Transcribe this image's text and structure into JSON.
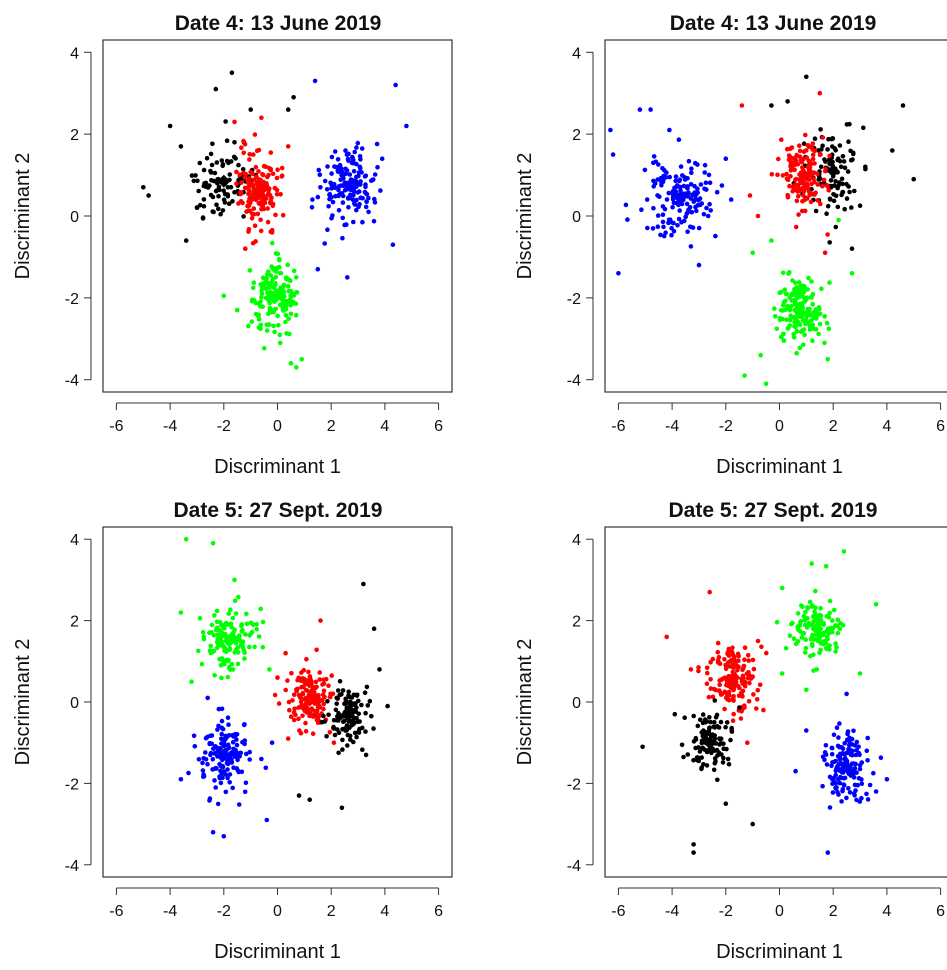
{
  "chart_data": [
    {
      "type": "scatter",
      "title": "Date 4: 13 June 2019",
      "xlabel": "Discriminant 1",
      "ylabel": "Discriminant 2",
      "xlim": [
        -6.5,
        6.5
      ],
      "ylim": [
        -4.3,
        4.3
      ],
      "xticks": [
        -6,
        -4,
        -2,
        0,
        2,
        4,
        6
      ],
      "yticks": [
        -4,
        -2,
        0,
        2,
        4
      ],
      "grid": false,
      "series": [
        {
          "color": "#000000",
          "center": [
            -2.0,
            0.85
          ],
          "spread": [
            1.1,
            0.85
          ],
          "n": 90,
          "points": [
            [
              -5.0,
              0.7
            ],
            [
              -4.8,
              0.5
            ],
            [
              -4.0,
              2.2
            ],
            [
              -3.6,
              1.7
            ],
            [
              -3.4,
              -0.6
            ],
            [
              -2.3,
              3.1
            ],
            [
              -1.7,
              3.5
            ],
            [
              0.4,
              2.6
            ],
            [
              0.6,
              2.9
            ],
            [
              -1.0,
              2.6
            ],
            [
              -2.5,
              1.1
            ],
            [
              -1.8,
              0.3
            ],
            [
              -3.0,
              0.2
            ],
            [
              -2.2,
              0.9
            ],
            [
              -1.6,
              1.8
            ]
          ],
          "marker": [
            -2.0,
            0.85
          ]
        },
        {
          "color": "#ff0000",
          "center": [
            -0.7,
            0.55
          ],
          "spread": [
            0.7,
            0.9
          ],
          "n": 150,
          "points": [
            [
              -1.6,
              2.3
            ],
            [
              -0.6,
              2.4
            ],
            [
              -1.2,
              -0.8
            ],
            [
              -0.2,
              -0.4
            ],
            [
              0.4,
              1.7
            ],
            [
              -0.9,
              1.5
            ]
          ],
          "marker": [
            -0.7,
            0.55
          ]
        },
        {
          "color": "#00ff00",
          "center": [
            -0.1,
            -2.0
          ],
          "spread": [
            0.7,
            0.75
          ],
          "n": 160,
          "points": [
            [
              -2.0,
              -1.95
            ],
            [
              -1.5,
              -2.3
            ],
            [
              0.5,
              -3.6
            ],
            [
              0.9,
              -3.5
            ],
            [
              0.7,
              -3.7
            ],
            [
              0.1,
              -3.1
            ]
          ],
          "marker": [
            -0.1,
            -2.0
          ]
        },
        {
          "color": "#0000ff",
          "center": [
            2.7,
            0.75
          ],
          "spread": [
            0.95,
            0.85
          ],
          "n": 150,
          "points": [
            [
              1.4,
              3.3
            ],
            [
              4.4,
              3.2
            ],
            [
              4.8,
              2.2
            ],
            [
              1.5,
              -1.3
            ],
            [
              2.6,
              -1.5
            ],
            [
              4.3,
              -0.7
            ],
            [
              3.9,
              1.4
            ],
            [
              1.3,
              0.4
            ]
          ],
          "marker": [
            2.7,
            0.75
          ]
        }
      ]
    },
    {
      "type": "scatter",
      "title": "Date 4: 13 June 2019",
      "xlabel": "Discriminant 1",
      "ylabel": "Discriminant 2",
      "xlim": [
        -6.5,
        6.5
      ],
      "ylim": [
        -4.3,
        4.3
      ],
      "xticks": [
        -6,
        -4,
        -2,
        0,
        2,
        4,
        6
      ],
      "yticks": [
        -4,
        -2,
        0,
        2,
        4
      ],
      "grid": false,
      "series": [
        {
          "color": "#000000",
          "center": [
            2.0,
            1.1
          ],
          "spread": [
            1.0,
            0.9
          ],
          "n": 110,
          "points": [
            [
              4.6,
              2.7
            ],
            [
              5.0,
              0.9
            ],
            [
              4.2,
              1.6
            ],
            [
              1.0,
              3.4
            ],
            [
              0.3,
              2.8
            ],
            [
              -0.3,
              2.7
            ],
            [
              2.7,
              -0.8
            ]
          ],
          "marker": [
            2.0,
            1.1
          ]
        },
        {
          "color": "#ff0000",
          "center": [
            0.9,
            1.0
          ],
          "spread": [
            0.8,
            0.75
          ],
          "n": 150,
          "points": [
            [
              -1.4,
              2.7
            ],
            [
              -1.1,
              0.5
            ],
            [
              -0.8,
              0.0
            ],
            [
              1.5,
              3.0
            ],
            [
              1.7,
              -0.9
            ]
          ],
          "marker": [
            0.9,
            1.0
          ]
        },
        {
          "color": "#0000ff",
          "center": [
            -3.7,
            0.45
          ],
          "spread": [
            1.1,
            0.85
          ],
          "n": 150,
          "points": [
            [
              -6.3,
              2.1
            ],
            [
              -6.2,
              1.5
            ],
            [
              -5.2,
              2.6
            ],
            [
              -4.8,
              2.6
            ],
            [
              -6.0,
              -1.4
            ],
            [
              -4.7,
              1.3
            ],
            [
              -2.0,
              1.4
            ],
            [
              -1.8,
              0.4
            ],
            [
              -4.1,
              2.1
            ],
            [
              -3.0,
              -1.2
            ]
          ],
          "marker": [
            -3.7,
            0.45
          ]
        },
        {
          "color": "#00ff00",
          "center": [
            0.7,
            -2.3
          ],
          "spread": [
            0.8,
            0.75
          ],
          "n": 160,
          "points": [
            [
              -0.5,
              -4.1
            ],
            [
              -1.3,
              -3.9
            ],
            [
              -0.7,
              -3.4
            ],
            [
              1.8,
              -3.5
            ],
            [
              -1.0,
              -0.9
            ],
            [
              2.2,
              -0.1
            ],
            [
              2.7,
              -1.4
            ],
            [
              -0.3,
              -0.6
            ]
          ],
          "marker": [
            0.7,
            -2.3
          ]
        }
      ]
    },
    {
      "type": "scatter",
      "title": "Date 5: 27 Sept. 2019",
      "xlabel": "Discriminant 1",
      "ylabel": "Discriminant 2",
      "xlim": [
        -6.5,
        6.5
      ],
      "ylim": [
        -4.3,
        4.3
      ],
      "xticks": [
        -6,
        -4,
        -2,
        0,
        2,
        4,
        6
      ],
      "yticks": [
        -4,
        -2,
        0,
        2,
        4
      ],
      "grid": false,
      "series": [
        {
          "color": "#00ff00",
          "center": [
            -1.8,
            1.5
          ],
          "spread": [
            0.8,
            0.75
          ],
          "n": 130,
          "points": [
            [
              -3.4,
              4.0
            ],
            [
              -2.4,
              3.9
            ],
            [
              -3.6,
              2.2
            ],
            [
              -3.2,
              0.5
            ],
            [
              -1.6,
              3.0
            ],
            [
              -0.3,
              0.8
            ],
            [
              -0.9,
              1.9
            ]
          ],
          "marker": [
            -1.8,
            1.5
          ]
        },
        {
          "color": "#ff0000",
          "center": [
            1.2,
            0.05
          ],
          "spread": [
            0.75,
            0.65
          ],
          "n": 150,
          "points": [
            [
              1.6,
              2.0
            ],
            [
              0.0,
              0.6
            ],
            [
              0.4,
              -0.9
            ],
            [
              2.1,
              -1.0
            ],
            [
              0.3,
              1.2
            ]
          ],
          "marker": [
            1.2,
            0.05
          ]
        },
        {
          "color": "#000000",
          "center": [
            2.6,
            -0.3
          ],
          "spread": [
            0.7,
            0.6
          ],
          "n": 120,
          "points": [
            [
              3.2,
              2.9
            ],
            [
              3.6,
              1.8
            ],
            [
              2.4,
              -2.6
            ],
            [
              1.2,
              -2.4
            ],
            [
              0.8,
              -2.3
            ],
            [
              3.3,
              -1.3
            ],
            [
              4.1,
              -0.1
            ],
            [
              3.8,
              0.8
            ]
          ],
          "marker": [
            2.6,
            -0.3
          ]
        },
        {
          "color": "#0000ff",
          "center": [
            -2.0,
            -1.3
          ],
          "spread": [
            0.8,
            0.85
          ],
          "n": 150,
          "points": [
            [
              -3.6,
              -1.9
            ],
            [
              -2.0,
              -3.3
            ],
            [
              -2.4,
              -3.2
            ],
            [
              -0.4,
              -2.9
            ],
            [
              -0.2,
              -1.0
            ],
            [
              -2.6,
              0.1
            ],
            [
              -0.6,
              -1.4
            ]
          ],
          "marker": [
            -2.0,
            -1.3
          ]
        }
      ]
    },
    {
      "type": "scatter",
      "title": "Date 5: 27 Sept. 2019",
      "xlabel": "Discriminant 1",
      "ylabel": "Discriminant 2",
      "xlim": [
        -6.5,
        6.5
      ],
      "ylim": [
        -4.3,
        4.3
      ],
      "xticks": [
        -6,
        -4,
        -2,
        0,
        2,
        4,
        6
      ],
      "yticks": [
        -4,
        -2,
        0,
        2,
        4
      ],
      "grid": false,
      "series": [
        {
          "color": "#00ff00",
          "center": [
            1.4,
            1.8
          ],
          "spread": [
            0.85,
            0.75
          ],
          "n": 130,
          "points": [
            [
              2.4,
              3.7
            ],
            [
              3.6,
              2.4
            ],
            [
              0.1,
              2.8
            ],
            [
              0.1,
              0.7
            ],
            [
              1.0,
              0.3
            ],
            [
              3.0,
              0.7
            ],
            [
              1.2,
              3.4
            ]
          ],
          "marker": [
            1.4,
            1.8
          ]
        },
        {
          "color": "#ff0000",
          "center": [
            -1.7,
            0.6
          ],
          "spread": [
            0.8,
            0.75
          ],
          "n": 150,
          "points": [
            [
              -2.6,
              2.7
            ],
            [
              -4.2,
              1.6
            ],
            [
              -1.2,
              -1.0
            ],
            [
              -0.6,
              -0.2
            ],
            [
              -3.3,
              0.8
            ],
            [
              -0.8,
              1.5
            ]
          ],
          "marker": [
            -1.7,
            0.6
          ]
        },
        {
          "color": "#000000",
          "center": [
            -2.6,
            -1.0
          ],
          "spread": [
            0.75,
            0.7
          ],
          "n": 110,
          "points": [
            [
              -3.2,
              -3.7
            ],
            [
              -3.2,
              -3.5
            ],
            [
              -5.1,
              -1.1
            ],
            [
              -1.0,
              -3.0
            ],
            [
              -3.9,
              -0.3
            ],
            [
              -2.0,
              -2.5
            ]
          ],
          "marker": [
            -2.6,
            -1.0
          ]
        },
        {
          "color": "#0000ff",
          "center": [
            2.5,
            -1.6
          ],
          "spread": [
            0.75,
            0.75
          ],
          "n": 150,
          "points": [
            [
              1.8,
              -3.7
            ],
            [
              2.5,
              0.2
            ],
            [
              4.0,
              -1.9
            ],
            [
              1.0,
              -0.7
            ],
            [
              3.6,
              -2.2
            ],
            [
              0.6,
              -1.7
            ]
          ],
          "marker": [
            2.5,
            -1.6
          ]
        }
      ]
    }
  ]
}
